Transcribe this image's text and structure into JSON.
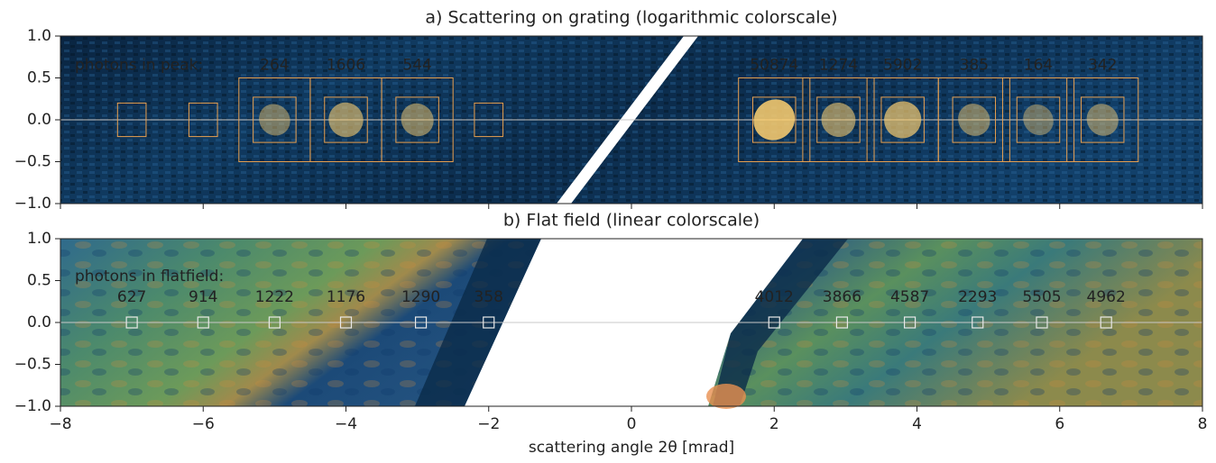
{
  "chart_data": [
    {
      "type": "image",
      "title": "a) Scattering on grating (logarithmic colorscale)",
      "xlim": [
        -8,
        8
      ],
      "ylim": [
        -1,
        1
      ],
      "yticks": [
        {
          "value": 1,
          "label": "1.0"
        },
        {
          "value": 0.5,
          "label": "0.5"
        },
        {
          "value": 0,
          "label": "0.0"
        },
        {
          "value": -0.5,
          "label": "−0.5"
        },
        {
          "value": -1,
          "label": "−1.0"
        }
      ],
      "annotation": "photons in peak:",
      "peaks": {
        "x": [
          -7,
          -6,
          -5,
          -4,
          -3,
          -2,
          2,
          2.9,
          3.8,
          4.8,
          5.7,
          6.6
        ],
        "photons": [
          null,
          null,
          264,
          1606,
          544,
          null,
          50874,
          1274,
          5902,
          385,
          164,
          342
        ]
      },
      "color": "#e8a050"
    },
    {
      "type": "image",
      "title": "b) Flat field (linear colorscale)",
      "xlim": [
        -8,
        8
      ],
      "ylim": [
        -1,
        1
      ],
      "xticks": [
        {
          "value": -8,
          "label": "−8"
        },
        {
          "value": -6,
          "label": "−6"
        },
        {
          "value": -4,
          "label": "−4"
        },
        {
          "value": -2,
          "label": "−2"
        },
        0,
        2,
        4,
        6,
        8
      ],
      "yticks": [
        {
          "value": 1,
          "label": "1.0"
        },
        {
          "value": 0.5,
          "label": "0.5"
        },
        {
          "value": 0,
          "label": "0.0"
        },
        {
          "value": -0.5,
          "label": "−0.5"
        },
        {
          "value": -1,
          "label": "−1.0"
        }
      ],
      "xlabel": "scattering angle 2θ [mrad]",
      "annotation": "photons in flatfield:",
      "peaks": {
        "x": [
          -7,
          -6,
          -5,
          -4,
          -2.95,
          -2,
          2,
          2.95,
          3.9,
          4.85,
          5.75,
          6.65
        ],
        "photons": [
          627,
          914,
          1222,
          1176,
          1290,
          358,
          4012,
          3866,
          4587,
          2293,
          5505,
          4962
        ]
      },
      "color": "#ffffff"
    }
  ]
}
